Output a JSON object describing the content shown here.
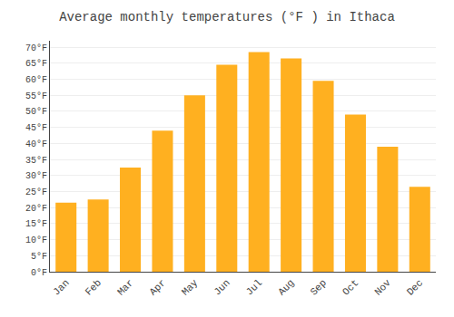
{
  "chart_data": {
    "type": "bar",
    "title": "Average monthly temperatures (°F ) in Ithaca",
    "categories": [
      "Jan",
      "Feb",
      "Mar",
      "Apr",
      "May",
      "Jun",
      "Jul",
      "Aug",
      "Sep",
      "Oct",
      "Nov",
      "Dec"
    ],
    "values": [
      21.5,
      22.5,
      32.5,
      44.0,
      55.0,
      64.5,
      68.5,
      66.5,
      59.5,
      49.0,
      39.0,
      26.5
    ],
    "color": "#FFB020",
    "ylim": [
      0,
      72
    ],
    "yticks": [
      {
        "value": 0,
        "label": "0°F"
      },
      {
        "value": 5,
        "label": "5°F"
      },
      {
        "value": 10,
        "label": "10°F"
      },
      {
        "value": 15,
        "label": "15°F"
      },
      {
        "value": 20,
        "label": "20°F"
      },
      {
        "value": 25,
        "label": "25°F"
      },
      {
        "value": 30,
        "label": "30°F"
      },
      {
        "value": 35,
        "label": "35°F"
      },
      {
        "value": 40,
        "label": "40°F"
      },
      {
        "value": 45,
        "label": "45°F"
      },
      {
        "value": 50,
        "label": "50°F"
      },
      {
        "value": 55,
        "label": "55°F"
      },
      {
        "value": 60,
        "label": "60°F"
      },
      {
        "value": 65,
        "label": "65°F"
      },
      {
        "value": 70,
        "label": "70°F"
      }
    ],
    "grid": true
  }
}
